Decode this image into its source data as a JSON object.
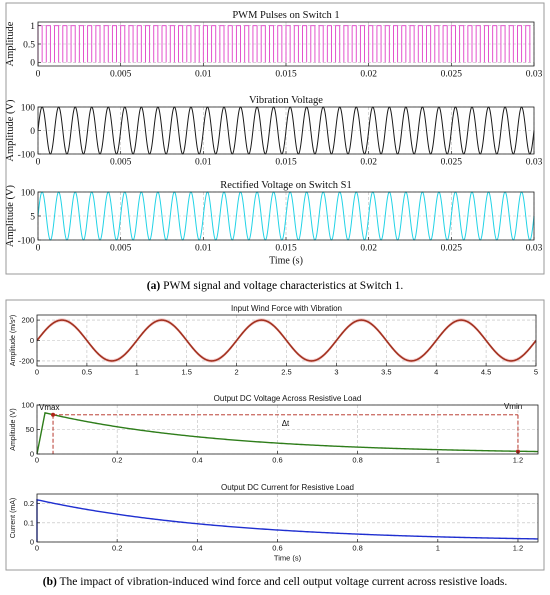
{
  "captions": {
    "a_label": "(a)",
    "a_text": "PWM signal and voltage characteristics at Switch 1.",
    "b_label": "(b)",
    "b_text": "The impact of vibration-induced wind force and cell output voltage current across resistive loads."
  },
  "colors": {
    "pwm": "#e040c8",
    "vibration": "#1a1a1a",
    "rectified": "#22d3e6",
    "wind": "#a2311f",
    "wind_band": "#f3c4c4",
    "dc_voltage": "#2e7d1a",
    "dc_current": "#1f2fd0",
    "marker": "#b02418"
  },
  "chart_data": [
    {
      "type": "line",
      "title": "PWM Pulses on Switch 1",
      "xlabel": "",
      "ylabel": "Amplitude",
      "xlim": [
        0,
        0.03
      ],
      "ylim": [
        -0.1,
        1.1
      ],
      "xticks": [
        "0",
        "0.005",
        "0.01",
        "0.015",
        "0.02",
        "0.025",
        "0.03"
      ],
      "yticks": [
        "0",
        "0.5",
        "1"
      ],
      "grid": true,
      "series": [
        {
          "shape": "pulse train",
          "low": 0,
          "high": 1,
          "pulses_per_second": 2000,
          "duty": 0.5
        }
      ]
    },
    {
      "type": "line",
      "title": "Vibration Voltage",
      "xlabel": "",
      "ylabel": "Amplitude  (V)",
      "xlim": [
        0,
        0.03
      ],
      "ylim": [
        -100,
        100
      ],
      "xticks": [
        "0",
        "0.005",
        "0.01",
        "0.015",
        "0.02",
        "0.025",
        "0.03"
      ],
      "yticks": [
        "-100",
        "0",
        "100"
      ],
      "grid": true,
      "series": [
        {
          "shape": "sine",
          "amplitude": 100,
          "frequency_hz": 1000
        }
      ]
    },
    {
      "type": "line",
      "title": "Rectified Voltage on Switch S1",
      "xlabel": "Time (s)",
      "ylabel": "Amplitude  (V)",
      "xlim": [
        0,
        0.03
      ],
      "ylim": [
        -100,
        100
      ],
      "xticks": [
        "0",
        "0.005",
        "0.01",
        "0.015",
        "0.02",
        "0.025",
        "0.03"
      ],
      "yticks": [
        "-100",
        "5",
        "100"
      ],
      "grid": true,
      "series": [
        {
          "shape": "sine",
          "amplitude": 100,
          "frequency_hz": 1000
        }
      ]
    },
    {
      "type": "line",
      "title": "Input Wind Force with Vibration",
      "xlabel": "",
      "ylabel": "Amplitude (m/s²)",
      "xlim": [
        0,
        5
      ],
      "ylim": [
        -250,
        250
      ],
      "xticks": [
        "0",
        "0.5",
        "1",
        "1.5",
        "2",
        "2.5",
        "3",
        "3.5",
        "4",
        "4.5",
        "5"
      ],
      "yticks": [
        "-200",
        "0",
        "200"
      ],
      "grid": true,
      "series": [
        {
          "shape": "sine",
          "amplitude": 200,
          "frequency_hz": 1,
          "phase_deg": 0
        }
      ]
    },
    {
      "type": "line",
      "title": "Output DC Voltage Across Resistive Load",
      "xlabel": "",
      "ylabel": "Amplitude (V)",
      "xlim": [
        0,
        1.25
      ],
      "ylim": [
        0,
        100
      ],
      "xticks": [
        "0",
        "0.2",
        "0.4",
        "0.6",
        "0.8",
        "1",
        "1.2"
      ],
      "yticks": [
        "0",
        "50",
        "100"
      ],
      "grid": true,
      "series": [
        {
          "shape": "exponential decay",
          "start_x": 0.02,
          "start_y": 84,
          "end_x": 1.25,
          "end_y": 5
        }
      ],
      "annotations": {
        "vmax_label": "Vmax",
        "vmax_x": 0.04,
        "vmax_y": 80,
        "vmin_label": "Vmin",
        "vmin_x": 1.2,
        "vmin_y": 5,
        "delta_label": "Δt",
        "level_y": 80
      }
    },
    {
      "type": "line",
      "title": "Output DC Current for Resistive Load",
      "xlabel": "Time (s)",
      "ylabel": "Current (mA)",
      "xlim": [
        0,
        1.25
      ],
      "ylim": [
        0,
        0.25
      ],
      "xticks": [
        "0",
        "0.2",
        "0.4",
        "0.6",
        "0.8",
        "1",
        "1.2"
      ],
      "yticks": [
        "0",
        "0.1",
        "0.2"
      ],
      "grid": true,
      "series": [
        {
          "shape": "exponential decay",
          "start_x": 0.0,
          "start_y": 0.22,
          "end_x": 1.25,
          "end_y": 0.016
        }
      ]
    }
  ]
}
